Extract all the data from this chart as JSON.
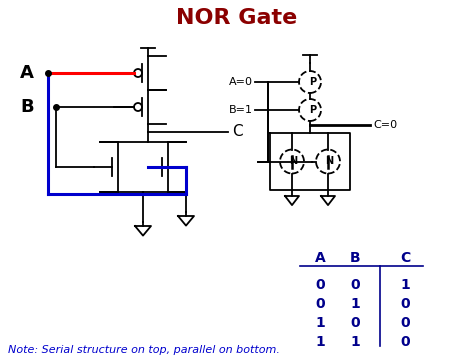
{
  "title": "NOR Gate",
  "title_color": "#8B0000",
  "title_fontsize": 16,
  "bg_color": "#ffffff",
  "note_text": "Note: Serial structure on top, parallel on bottom.",
  "truth_table": {
    "headers": [
      "A",
      "B",
      "C"
    ],
    "rows": [
      [
        0,
        0,
        1
      ],
      [
        0,
        1,
        0
      ],
      [
        1,
        0,
        0
      ],
      [
        1,
        1,
        0
      ]
    ]
  },
  "label_A": "A",
  "label_B": "B",
  "label_C": "C",
  "blue": "#0000CD",
  "red": "#FF0000",
  "black": "#000000",
  "dark_blue": "#00008B"
}
